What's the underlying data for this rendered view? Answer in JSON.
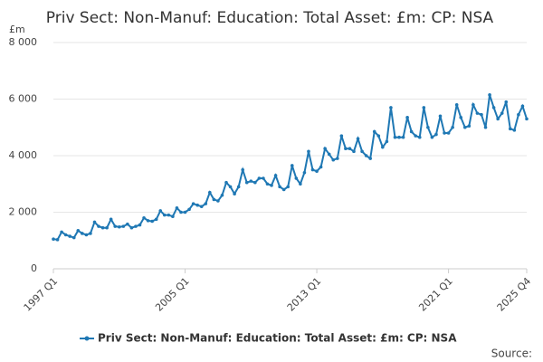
{
  "chart_data": {
    "type": "line",
    "title": "Priv Sect: Non-Manuf: Education: Total Asset: £m: CP: NSA",
    "y_label": "£m",
    "source": "Source:",
    "categories": [
      "1997 Q1",
      null,
      null,
      null,
      null,
      null,
      null,
      null,
      null,
      null,
      null,
      null,
      null,
      null,
      null,
      null,
      null,
      null,
      null,
      null,
      null,
      null,
      null,
      null,
      null,
      null,
      null,
      null,
      null,
      null,
      null,
      null,
      "2005 Q1",
      null,
      null,
      null,
      null,
      null,
      null,
      null,
      null,
      null,
      null,
      null,
      null,
      null,
      null,
      null,
      null,
      null,
      null,
      null,
      null,
      null,
      null,
      null,
      null,
      null,
      null,
      null,
      null,
      null,
      null,
      null,
      "2013 Q1",
      null,
      null,
      null,
      null,
      null,
      null,
      null,
      null,
      null,
      null,
      null,
      null,
      null,
      null,
      null,
      null,
      null,
      null,
      null,
      null,
      null,
      null,
      null,
      null,
      null,
      null,
      null,
      null,
      null,
      null,
      null,
      "2021 Q1",
      null,
      null,
      null,
      null,
      null,
      null,
      null,
      null,
      null,
      null,
      null,
      null,
      null,
      null,
      null,
      null,
      null,
      null,
      "2025 Q4"
    ],
    "series": [
      {
        "name": "Priv Sect: Non-Manuf: Education: Total Asset: £m: CP: NSA",
        "color": "#1f78b4",
        "values": [
          1050,
          1030,
          1300,
          1200,
          1150,
          1100,
          1350,
          1250,
          1200,
          1250,
          1650,
          1500,
          1450,
          1450,
          1750,
          1500,
          1480,
          1500,
          1580,
          1450,
          1500,
          1550,
          1800,
          1700,
          1680,
          1750,
          2050,
          1900,
          1900,
          1850,
          2150,
          2000,
          2000,
          2100,
          2300,
          2250,
          2200,
          2300,
          2700,
          2450,
          2400,
          2600,
          3050,
          2900,
          2650,
          2900,
          3500,
          3050,
          3100,
          3050,
          3200,
          3200,
          3000,
          2950,
          3300,
          2900,
          2800,
          2900,
          3650,
          3200,
          3000,
          3400,
          4150,
          3500,
          3450,
          3600,
          4250,
          4050,
          3850,
          3900,
          4700,
          4250,
          4250,
          4150,
          4600,
          4150,
          4000,
          3900,
          4850,
          4700,
          4300,
          4500,
          5700,
          4650,
          4650,
          4650,
          5350,
          4850,
          4700,
          4650,
          5700,
          5000,
          4650,
          4750,
          5400,
          4800,
          4800,
          5000,
          5800,
          5350,
          5000,
          5050,
          5800,
          5500,
          5450,
          5000,
          6150,
          5700,
          5300,
          5500,
          5900,
          4950,
          4900,
          5450,
          5750,
          5300
        ]
      }
    ],
    "ylim": [
      0,
      8000
    ],
    "yticks": [
      0,
      {
        "value": 2000,
        "label": "2 000"
      },
      {
        "value": 4000,
        "label": "4 000"
      },
      {
        "value": 6000,
        "label": "6 000"
      },
      {
        "value": 8000,
        "label": "8 000"
      }
    ],
    "grid": true,
    "legend": "bottom"
  }
}
